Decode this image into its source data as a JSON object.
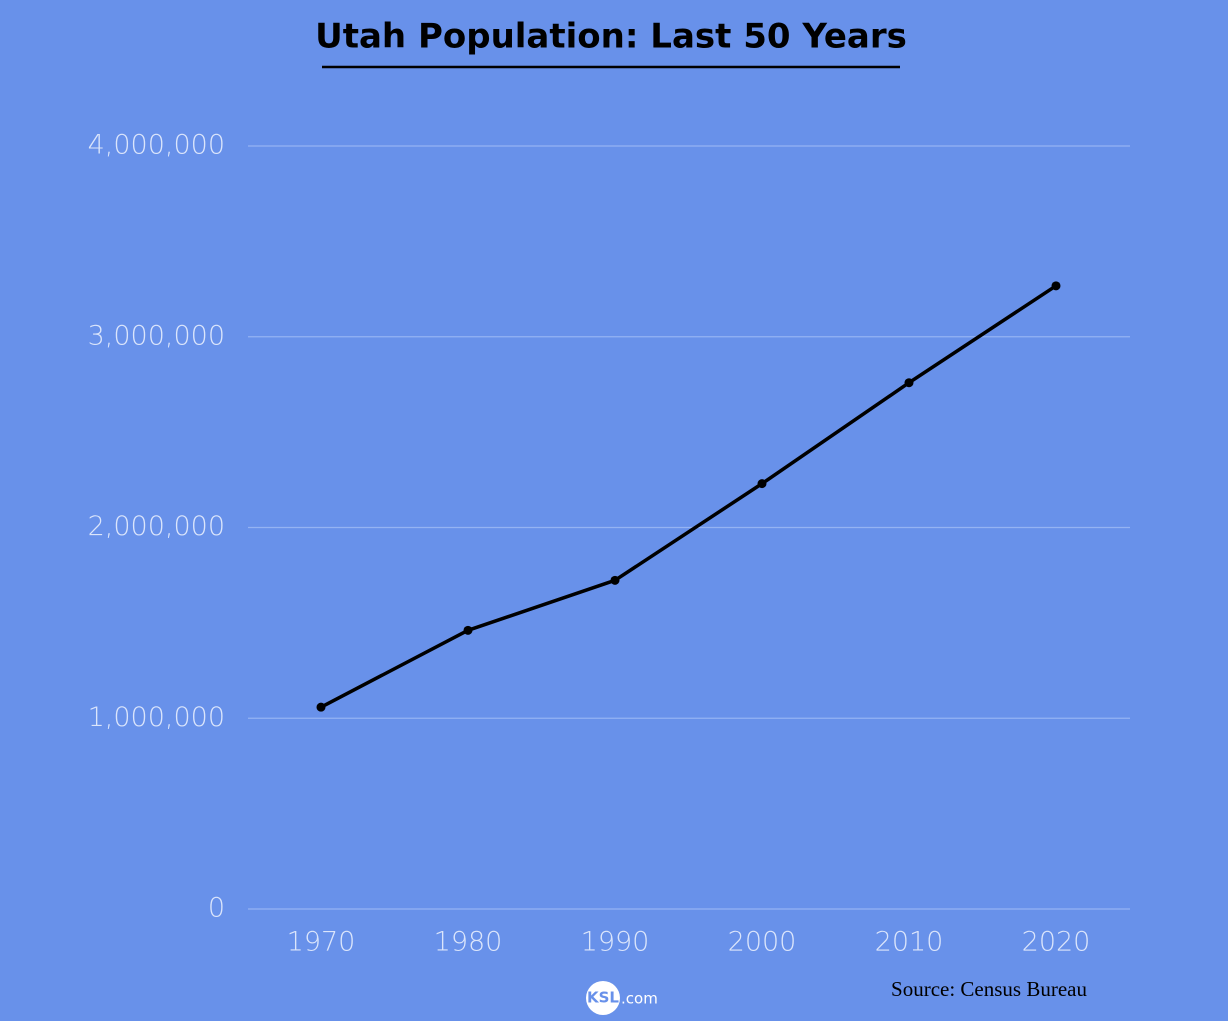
{
  "chart_data": {
    "type": "line",
    "title": "Utah Population: Last 50 Years",
    "categories": [
      "1970",
      "1980",
      "1990",
      "2000",
      "2010",
      "2020"
    ],
    "values": [
      1058000,
      1461000,
      1723000,
      2230000,
      2759000,
      3267000
    ],
    "color": "#000000",
    "ylim": [
      0,
      4000000
    ],
    "yticks": [
      0,
      {
        "value": 1000000,
        "label": "1,000,000"
      },
      {
        "value": 2000000,
        "label": "2,000,000"
      },
      {
        "value": 3000000,
        "label": "3,000,000"
      },
      {
        "value": 4000000,
        "label": "4,000,000"
      }
    ],
    "grid": true,
    "source": "Source: Census Bureau",
    "logo": {
      "brand": "KSL",
      "suffix": ".com"
    }
  }
}
